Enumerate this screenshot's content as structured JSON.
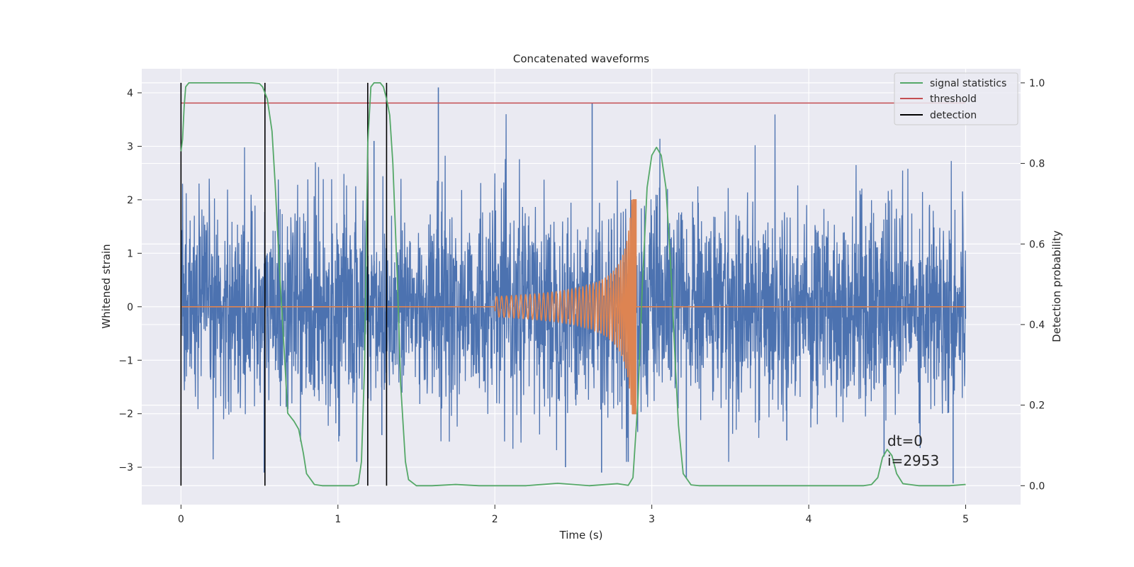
{
  "chart_data": {
    "type": "line",
    "title": "Concatenated waveforms",
    "xlabel": "Time (s)",
    "ylabel": "Whitened strain",
    "y2label": "Detection probability",
    "xlim": [
      -0.25,
      5.35
    ],
    "ylim": [
      -3.7,
      4.45
    ],
    "y2lim": [
      -0.047,
      1.035
    ],
    "xticks": [
      0,
      1,
      2,
      3,
      4,
      5
    ],
    "yticks": [
      -3,
      -2,
      -1,
      0,
      1,
      2,
      3,
      4
    ],
    "y2ticks": [
      0.0,
      0.2,
      0.4,
      0.6,
      0.8,
      1.0
    ],
    "grid": true,
    "legend_position": "top-right",
    "legend": [
      "signal statistics",
      "threshold",
      "detection"
    ],
    "annotations": [
      "dt=0",
      "i=2953"
    ],
    "colors": {
      "strain": "#4c72b0",
      "injection": "#dd8452",
      "signal_statistics": "#55a868",
      "threshold": "#c44e52",
      "detection": "#000000",
      "axes_bg": "#eaeaf2"
    },
    "series": [
      {
        "name": "signal statistics",
        "axis": "right",
        "x": [
          0,
          0.01,
          0.02,
          0.03,
          0.05,
          0.1,
          0.2,
          0.3,
          0.4,
          0.45,
          0.5,
          0.52,
          0.55,
          0.58,
          0.6,
          0.63,
          0.66,
          0.68,
          0.7,
          0.72,
          0.75,
          0.78,
          0.8,
          0.85,
          0.9,
          1.0,
          1.1,
          1.13,
          1.15,
          1.17,
          1.19,
          1.21,
          1.23,
          1.25,
          1.27,
          1.29,
          1.31,
          1.33,
          1.35,
          1.38,
          1.4,
          1.43,
          1.45,
          1.5,
          1.6,
          1.75,
          1.9,
          2.0,
          2.2,
          2.4,
          2.6,
          2.78,
          2.85,
          2.88,
          2.91,
          2.94,
          2.97,
          3.0,
          3.03,
          3.06,
          3.09,
          3.12,
          3.15,
          3.17,
          3.2,
          3.25,
          3.3,
          3.5,
          4.0,
          4.35,
          4.4,
          4.44,
          4.47,
          4.5,
          4.53,
          4.56,
          4.6,
          4.7,
          4.9,
          5.0
        ],
        "y": [
          0.83,
          0.86,
          0.94,
          0.99,
          1.0,
          1.0,
          1.0,
          1.0,
          1.0,
          1.0,
          0.998,
          0.99,
          0.96,
          0.88,
          0.75,
          0.52,
          0.32,
          0.18,
          0.17,
          0.16,
          0.14,
          0.08,
          0.03,
          0.003,
          0.0,
          0.0,
          0.0,
          0.005,
          0.06,
          0.3,
          0.85,
          0.99,
          1.0,
          1.0,
          1.0,
          0.99,
          0.96,
          0.92,
          0.8,
          0.5,
          0.25,
          0.06,
          0.015,
          0.0,
          0.0,
          0.003,
          0.0,
          0.0,
          0.0,
          0.006,
          0.0,
          0.005,
          0.001,
          0.02,
          0.2,
          0.5,
          0.74,
          0.82,
          0.84,
          0.82,
          0.74,
          0.55,
          0.3,
          0.15,
          0.03,
          0.002,
          0.0,
          0.0,
          0.0,
          0.0,
          0.003,
          0.02,
          0.07,
          0.09,
          0.075,
          0.03,
          0.005,
          0.0,
          0.0,
          0.003
        ]
      },
      {
        "name": "threshold",
        "axis": "right",
        "x": [
          0,
          5
        ],
        "y": [
          0.95,
          0.95
        ]
      },
      {
        "name": "detection",
        "axis": "right",
        "x": [
          0,
          0.535,
          1.19,
          1.31
        ],
        "y_range": [
          0,
          1
        ]
      },
      {
        "name": "",
        "axis": "left",
        "x_range": [
          0,
          5
        ],
        "approx_range": [
          -3.3,
          4.1
        ],
        "spikes": [
          [
            0.53,
            -3.1
          ],
          [
            1.12,
            -2.9
          ],
          [
            1.23,
            3.1
          ],
          [
            1.28,
            -2.4
          ],
          [
            1.64,
            4.1
          ],
          [
            2.45,
            -3.0
          ],
          [
            2.62,
            3.8
          ],
          [
            2.68,
            -3.1
          ],
          [
            2.85,
            -2.9
          ],
          [
            3.22,
            -3.2
          ],
          [
            3.86,
            -2.5
          ],
          [
            4.48,
            -2.8
          ],
          [
            4.92,
            -3.3
          ]
        ]
      },
      {
        "name": "",
        "axis": "left",
        "chirp_start": 2.0,
        "chirp_end": 2.9,
        "peak_amplitude": 2.0
      }
    ]
  }
}
